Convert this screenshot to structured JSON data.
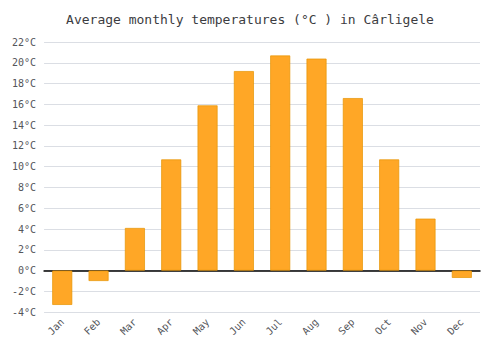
{
  "chart_data": {
    "type": "bar",
    "title": "Average monthly temperatures (°C ) in Cârligele",
    "categories": [
      "Jan",
      "Feb",
      "Mar",
      "Apr",
      "May",
      "Jun",
      "Jul",
      "Aug",
      "Sep",
      "Oct",
      "Nov",
      "Dec"
    ],
    "values": [
      -3.3,
      -1.0,
      4.1,
      10.7,
      15.9,
      19.2,
      20.7,
      20.4,
      16.6,
      10.7,
      5.0,
      -0.7
    ],
    "color": "#FFA726",
    "ylim": [
      -4,
      22
    ],
    "yticks": [
      {
        "value": -4,
        "label": "-4°C"
      },
      {
        "value": -2,
        "label": "-2°C"
      },
      {
        "value": 0,
        "label": "0°C"
      },
      {
        "value": 2,
        "label": "2°C"
      },
      {
        "value": 4,
        "label": "4°C"
      },
      {
        "value": 6,
        "label": "6°C"
      },
      {
        "value": 8,
        "label": "8°C"
      },
      {
        "value": 10,
        "label": "10°C"
      },
      {
        "value": 12,
        "label": "12°C"
      },
      {
        "value": 14,
        "label": "14°C"
      },
      {
        "value": 16,
        "label": "16°C"
      },
      {
        "value": 18,
        "label": "18°C"
      },
      {
        "value": 20,
        "label": "20°C"
      },
      {
        "value": 22,
        "label": "22°C"
      }
    ],
    "grid": true
  }
}
